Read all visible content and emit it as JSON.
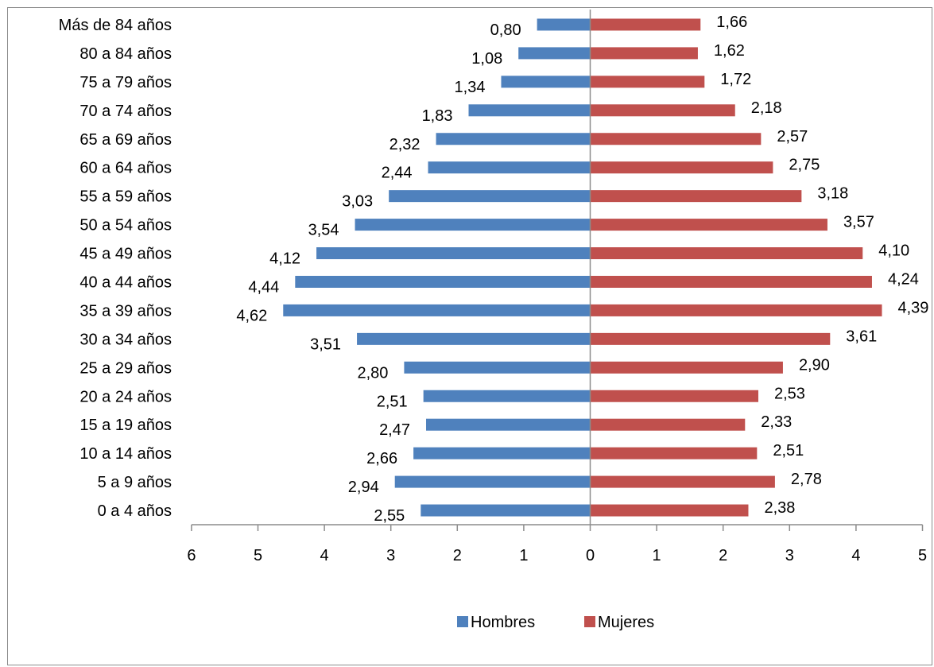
{
  "chart_data": {
    "type": "bar",
    "orientation": "horizontal",
    "layout": "population-pyramid",
    "categories": [
      "Más de 84 años",
      "80 a 84 años",
      "75 a 79 años",
      "70 a 74 años",
      "65 a 69 años",
      "60 a 64 años",
      "55 a 59 años",
      "50 a 54 años",
      "45 a 49 años",
      "40 a 44 años",
      "35 a 39 años",
      "30 a 34 años",
      "25 a 29 años",
      "20 a 24 años",
      "15 a 19 años",
      "10 a 14 años",
      "5 a 9 años",
      "0 a 4 años"
    ],
    "series": [
      {
        "name": "Hombres",
        "color": "#4f81bd",
        "side": "left",
        "values": [
          0.8,
          1.08,
          1.34,
          1.83,
          2.32,
          2.44,
          3.03,
          3.54,
          4.12,
          4.44,
          4.62,
          3.51,
          2.8,
          2.51,
          2.47,
          2.66,
          2.94,
          2.55
        ],
        "labels": [
          "0,80",
          "1,08",
          "1,34",
          "1,83",
          "2,32",
          "2,44",
          "3,03",
          "3,54",
          "4,12",
          "4,44",
          "4,62",
          "3,51",
          "2,80",
          "2,51",
          "2,47",
          "2,66",
          "2,94",
          "2,55"
        ]
      },
      {
        "name": "Mujeres",
        "color": "#c0504d",
        "side": "right",
        "values": [
          1.66,
          1.62,
          1.72,
          2.18,
          2.57,
          2.75,
          3.18,
          3.57,
          4.1,
          4.24,
          4.39,
          3.61,
          2.9,
          2.53,
          2.33,
          2.51,
          2.78,
          2.38
        ],
        "labels": [
          "1,66",
          "1,62",
          "1,72",
          "2,18",
          "2,57",
          "2,75",
          "3,18",
          "3,57",
          "4,10",
          "4,24",
          "4,39",
          "3,61",
          "2,90",
          "2,53",
          "2,33",
          "2,51",
          "2,78",
          "2,38"
        ]
      }
    ],
    "x_ticks": [
      "6",
      "5",
      "4",
      "3",
      "2",
      "1",
      "0",
      "1",
      "2",
      "3",
      "4",
      "5"
    ],
    "xlim": [
      -6,
      5
    ],
    "grid": false,
    "legend_position": "bottom",
    "title": "",
    "xlabel": "",
    "ylabel": ""
  }
}
